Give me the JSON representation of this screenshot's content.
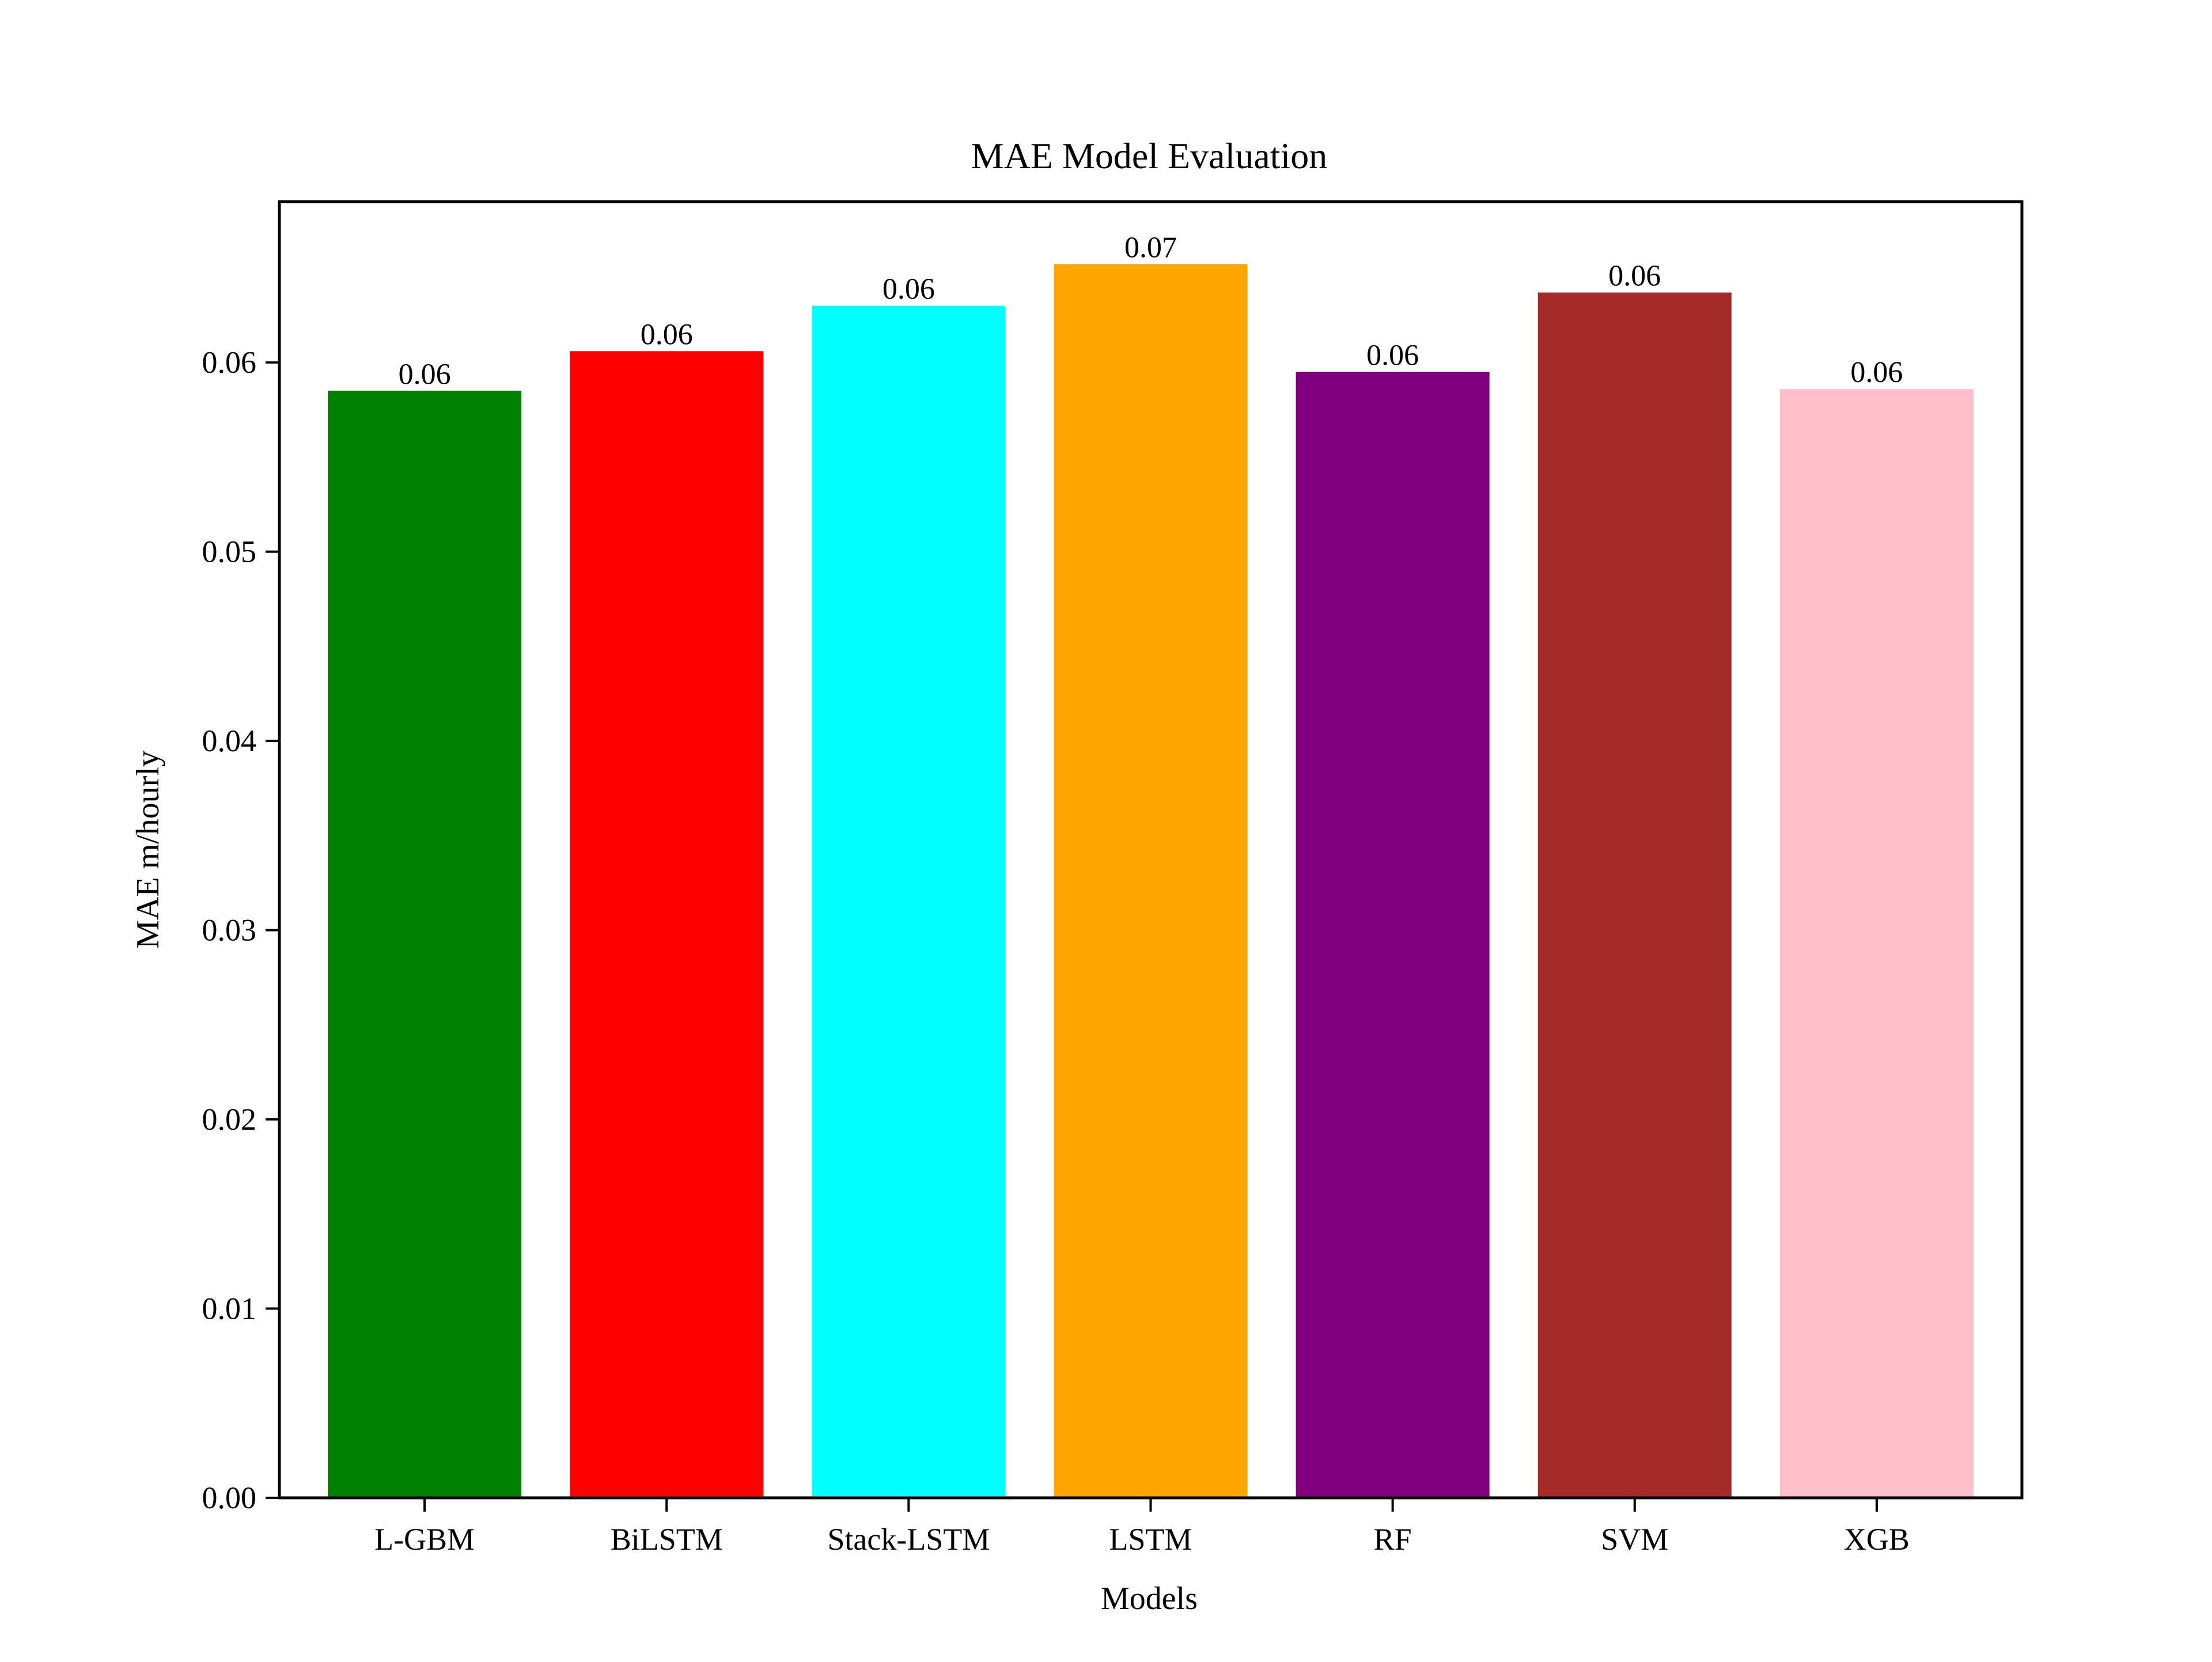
{
  "chart_data": {
    "type": "bar",
    "title": "MAE Model Evaluation",
    "xlabel": "Models",
    "ylabel": "MAE m/hourly",
    "categories": [
      "L-GBM",
      "BiLSTM",
      "Stack-LSTM",
      "LSTM",
      "RF",
      "SVM",
      "XGB"
    ],
    "values": [
      0.0585,
      0.0606,
      0.063,
      0.0652,
      0.0595,
      0.0637,
      0.0586
    ],
    "value_labels": [
      "0.06",
      "0.06",
      "0.06",
      "0.07",
      "0.06",
      "0.06",
      "0.06"
    ],
    "colors": [
      "#008000",
      "#ff0000",
      "#00ffff",
      "#ffa500",
      "#800080",
      "#a52a2a",
      "#ffc0cb"
    ],
    "ylim": [
      0,
      0.0685
    ],
    "yticks": [
      0.0,
      0.01,
      0.02,
      0.03,
      0.04,
      0.05,
      0.06
    ],
    "ytick_labels": [
      "0.00",
      "0.01",
      "0.02",
      "0.03",
      "0.04",
      "0.05",
      "0.06"
    ],
    "grid": false,
    "legend": "none"
  }
}
